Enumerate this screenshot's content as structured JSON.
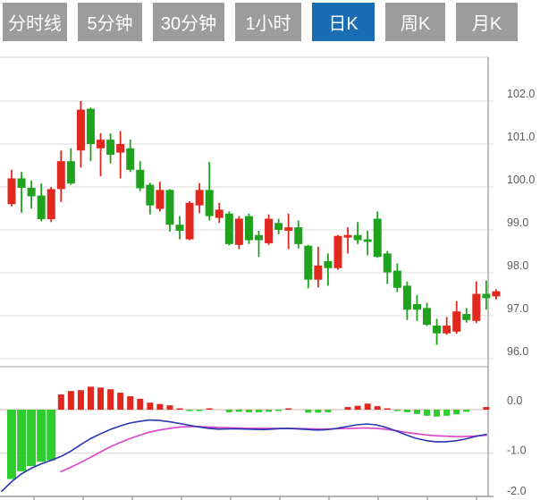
{
  "tabs": {
    "items": [
      {
        "label": "分时线",
        "active": false
      },
      {
        "label": "5分钟",
        "active": false
      },
      {
        "label": "30分钟",
        "active": false
      },
      {
        "label": "1小时",
        "active": false
      },
      {
        "label": "日K",
        "active": true
      },
      {
        "label": "周K",
        "active": false
      },
      {
        "label": "月K",
        "active": false
      }
    ],
    "active_index": 4
  },
  "colors": {
    "up": "#e0281e",
    "down": "#1fa31f",
    "hist_up": "#e0281e",
    "hist_down": "#2ecc2e",
    "dif_line": "#2a35b4",
    "dea_line": "#d843cb",
    "tab_bg": "#9c9c9c",
    "tab_active_bg": "#1a6cb3",
    "tab_text": "#ffffff",
    "grid": "#dedede",
    "separator": "#c4c4c4",
    "axis_line": "#9a9a9a",
    "zero_line": "#deb0b0",
    "axis_text": "#5c5c5c"
  },
  "chart_data": [
    {
      "type": "candlestick",
      "panel": "price",
      "grid": true,
      "legend_position": "none",
      "y_axis": {
        "position": "right",
        "range": [
          95.6,
          103.0
        ],
        "ticks": [
          102.0,
          101.0,
          100.0,
          99.0,
          98.0,
          97.0,
          96.0
        ],
        "labels": [
          "102.0",
          "101.0",
          "100.0",
          "99.0",
          "98.0",
          "97.0",
          "96.0"
        ]
      },
      "ohlc_columns": [
        "open",
        "close",
        "high",
        "low"
      ],
      "up_means": "close >= open (red)",
      "down_means": "close < open (green)",
      "candles": [
        [
          99.6,
          100.2,
          100.4,
          99.55
        ],
        [
          100.2,
          99.98,
          100.35,
          99.4
        ],
        [
          99.98,
          99.78,
          100.15,
          99.5
        ],
        [
          99.8,
          99.25,
          100.08,
          99.2
        ],
        [
          99.25,
          99.95,
          100.0,
          99.18
        ],
        [
          99.95,
          100.6,
          100.85,
          99.65
        ],
        [
          100.6,
          100.08,
          100.9,
          100.05
        ],
        [
          100.85,
          101.8,
          102.0,
          100.45
        ],
        [
          101.82,
          101.0,
          101.85,
          100.6
        ],
        [
          100.9,
          101.1,
          101.25,
          100.25
        ],
        [
          101.1,
          100.75,
          101.25,
          100.55
        ],
        [
          100.8,
          101.0,
          101.3,
          100.2
        ],
        [
          100.9,
          100.4,
          101.1,
          100.35
        ],
        [
          100.4,
          99.97,
          100.6,
          99.9
        ],
        [
          100.05,
          99.57,
          100.1,
          99.36
        ],
        [
          99.49,
          99.93,
          100.12,
          99.43
        ],
        [
          99.93,
          99.12,
          99.95,
          98.96
        ],
        [
          99.12,
          98.98,
          99.32,
          98.78
        ],
        [
          98.78,
          99.63,
          99.67,
          98.76
        ],
        [
          99.57,
          99.93,
          100.09,
          99.39
        ],
        [
          99.93,
          99.32,
          100.58,
          99.22
        ],
        [
          99.28,
          99.47,
          99.63,
          99.16
        ],
        [
          99.38,
          98.67,
          99.43,
          98.64
        ],
        [
          98.65,
          99.26,
          99.32,
          98.55
        ],
        [
          99.32,
          98.76,
          99.38,
          98.67
        ],
        [
          98.88,
          98.76,
          98.98,
          98.37
        ],
        [
          98.69,
          99.26,
          99.36,
          98.65
        ],
        [
          99.16,
          99.0,
          99.26,
          98.9
        ],
        [
          98.98,
          99.06,
          99.38,
          98.55
        ],
        [
          99.06,
          98.67,
          99.22,
          98.57
        ],
        [
          98.63,
          97.84,
          98.65,
          97.64
        ],
        [
          97.84,
          98.17,
          98.61,
          97.66
        ],
        [
          98.27,
          98.11,
          98.45,
          97.7
        ],
        [
          98.11,
          98.86,
          98.88,
          98.07
        ],
        [
          98.82,
          98.88,
          99.06,
          98.45
        ],
        [
          98.88,
          98.76,
          99.18,
          98.67
        ],
        [
          98.78,
          98.72,
          98.98,
          98.41
        ],
        [
          99.26,
          98.37,
          99.43,
          98.35
        ],
        [
          98.45,
          98.01,
          98.51,
          97.74
        ],
        [
          98.05,
          97.65,
          98.22,
          97.55
        ],
        [
          97.7,
          97.14,
          97.8,
          96.9
        ],
        [
          97.27,
          97.14,
          97.48,
          96.88
        ],
        [
          97.18,
          96.79,
          97.3,
          96.76
        ],
        [
          96.77,
          96.59,
          96.93,
          96.32
        ],
        [
          96.59,
          96.77,
          96.97,
          96.56
        ],
        [
          96.63,
          97.1,
          97.34,
          96.58
        ],
        [
          97.04,
          96.9,
          97.18,
          96.84
        ],
        [
          96.88,
          97.51,
          97.8,
          96.83
        ],
        [
          97.51,
          97.41,
          97.82,
          97.14
        ],
        [
          97.45,
          97.57,
          97.62,
          97.38
        ]
      ]
    },
    {
      "type": "bar",
      "panel": "macd",
      "grid": true,
      "y_axis": {
        "position": "right",
        "range": [
          -2.1,
          0.6
        ],
        "ticks": [
          0.0,
          -1.0,
          -2.0
        ],
        "labels": [
          "0.0",
          "-1.0",
          "-2.0"
        ]
      },
      "histogram": [
        -1.6,
        -1.42,
        -1.3,
        -1.2,
        -1.17,
        0.35,
        0.43,
        0.45,
        0.53,
        0.51,
        0.47,
        0.39,
        0.31,
        0.25,
        0.16,
        0.13,
        0.1,
        0.03,
        -0.03,
        -0.03,
        0.02,
        0.0,
        -0.06,
        -0.05,
        -0.06,
        -0.06,
        -0.05,
        -0.02,
        0.03,
        0.0,
        -0.07,
        -0.07,
        -0.06,
        0.0,
        0.06,
        0.09,
        0.14,
        0.08,
        0.03,
        -0.03,
        -0.06,
        -0.1,
        -0.14,
        -0.16,
        -0.14,
        -0.11,
        -0.05,
        0.0,
        0.06,
        0.0
      ],
      "dif_line": {
        "name": "DIF",
        "points": [
          [
            2,
            -1.88
          ],
          [
            13,
            -1.66
          ],
          [
            24,
            -1.48
          ],
          [
            35,
            -1.35
          ],
          [
            46,
            -1.25
          ],
          [
            57,
            -1.17
          ],
          [
            68,
            -1.08
          ],
          [
            79,
            -0.96
          ],
          [
            90,
            -0.81
          ],
          [
            101,
            -0.67
          ],
          [
            112,
            -0.56
          ],
          [
            123,
            -0.46
          ],
          [
            134,
            -0.38
          ],
          [
            145,
            -0.31
          ],
          [
            156,
            -0.27
          ],
          [
            167,
            -0.24
          ],
          [
            178,
            -0.25
          ],
          [
            190,
            -0.28
          ],
          [
            201,
            -0.32
          ],
          [
            212,
            -0.36
          ],
          [
            223,
            -0.4
          ],
          [
            234,
            -0.43
          ],
          [
            245,
            -0.45
          ],
          [
            262,
            -0.44
          ],
          [
            278,
            -0.45
          ],
          [
            295,
            -0.46
          ],
          [
            311,
            -0.44
          ],
          [
            322,
            -0.43
          ],
          [
            338,
            -0.45
          ],
          [
            355,
            -0.47
          ],
          [
            366,
            -0.46
          ],
          [
            377,
            -0.43
          ],
          [
            388,
            -0.39
          ],
          [
            399,
            -0.35
          ],
          [
            410,
            -0.33
          ],
          [
            421,
            -0.35
          ],
          [
            432,
            -0.41
          ],
          [
            443,
            -0.49
          ],
          [
            454,
            -0.58
          ],
          [
            465,
            -0.66
          ],
          [
            476,
            -0.71
          ],
          [
            487,
            -0.74
          ],
          [
            498,
            -0.74
          ],
          [
            509,
            -0.72
          ],
          [
            520,
            -0.68
          ],
          [
            531,
            -0.62
          ],
          [
            544,
            -0.57
          ]
        ]
      },
      "dea_line": {
        "name": "DEA",
        "points": [
          [
            68,
            -1.43
          ],
          [
            79,
            -1.33
          ],
          [
            90,
            -1.22
          ],
          [
            101,
            -1.1
          ],
          [
            112,
            -0.98
          ],
          [
            123,
            -0.86
          ],
          [
            134,
            -0.76
          ],
          [
            145,
            -0.67
          ],
          [
            156,
            -0.59
          ],
          [
            167,
            -0.52
          ],
          [
            178,
            -0.47
          ],
          [
            190,
            -0.43
          ],
          [
            201,
            -0.4
          ],
          [
            212,
            -0.39
          ],
          [
            223,
            -0.39
          ],
          [
            234,
            -0.4
          ],
          [
            245,
            -0.41
          ],
          [
            262,
            -0.42
          ],
          [
            278,
            -0.43
          ],
          [
            295,
            -0.43
          ],
          [
            311,
            -0.43
          ],
          [
            327,
            -0.43
          ],
          [
            343,
            -0.44
          ],
          [
            360,
            -0.45
          ],
          [
            376,
            -0.44
          ],
          [
            392,
            -0.43
          ],
          [
            409,
            -0.42
          ],
          [
            420,
            -0.43
          ],
          [
            431,
            -0.45
          ],
          [
            442,
            -0.48
          ],
          [
            453,
            -0.52
          ],
          [
            464,
            -0.55
          ],
          [
            475,
            -0.58
          ],
          [
            486,
            -0.6
          ],
          [
            497,
            -0.61
          ],
          [
            508,
            -0.62
          ],
          [
            519,
            -0.62
          ],
          [
            530,
            -0.61
          ],
          [
            544,
            -0.59
          ]
        ]
      }
    }
  ]
}
